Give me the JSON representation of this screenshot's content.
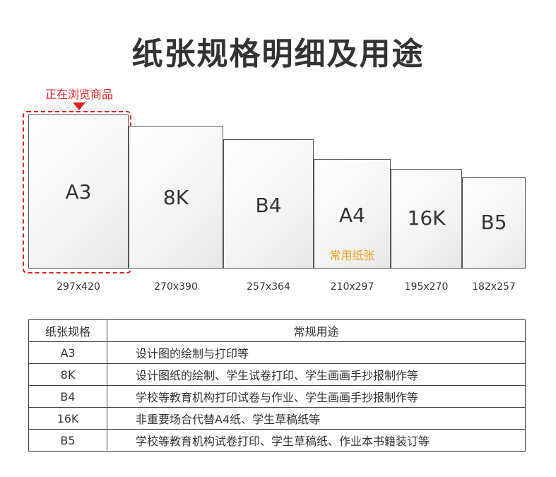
{
  "title": "纸张规格明细及用途",
  "viewing_label": "正在浏览商品",
  "sizes": [
    {
      "name": "A3",
      "dims": "297x420"
    },
    {
      "name": "8K",
      "dims": "270x390"
    },
    {
      "name": "B4",
      "dims": "257x364"
    },
    {
      "name": "A4",
      "dims": "210x297",
      "note": "常用纸张"
    },
    {
      "name": "16K",
      "dims": "195x270"
    },
    {
      "name": "B5",
      "dims": "182x257"
    }
  ],
  "table": {
    "headers": [
      "纸张规格",
      "常规用途"
    ],
    "rows": [
      {
        "spec": "A3",
        "use": "设计图的绘制与打印等"
      },
      {
        "spec": "8K",
        "use": "设计图纸的绘制、学生试卷打印、学生画画手抄报制作等"
      },
      {
        "spec": "B4",
        "use": "学校等教育机构打印试卷与作业、学生画画手抄报制作等"
      },
      {
        "spec": "16K",
        "use": "非重要场合代替A4纸、学生草稿纸等"
      },
      {
        "spec": "B5",
        "use": "学校等教育机构试卷打印、学生草稿纸、作业本书籍装订等"
      }
    ]
  }
}
